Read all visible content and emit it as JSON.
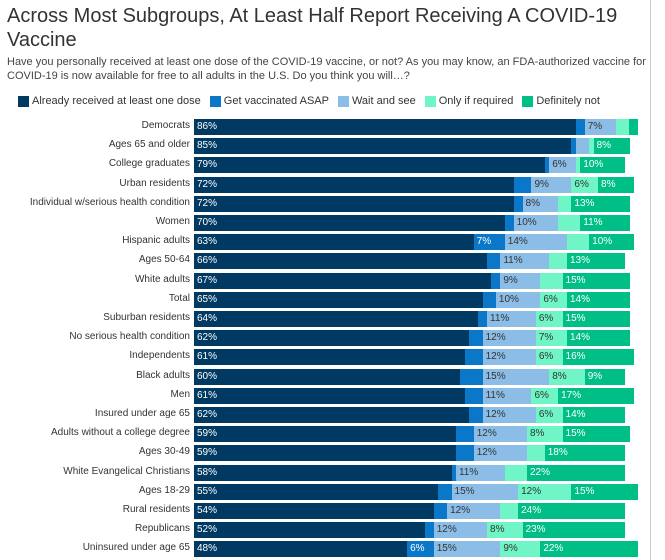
{
  "chart_data": {
    "type": "bar",
    "orientation": "horizontal",
    "stacked": true,
    "title": "Across Most Subgroups, At Least Half Report Receiving A COVID-19 Vaccine",
    "subtitle": "Have you personally received at least one dose of the COVID-19 vaccine, or not? As you may know, an FDA-authorized vaccine for COVID-19 is now available for free to all adults in the U.S. Do you think you will…?",
    "legend_position": "top",
    "grid": false,
    "xlim": [
      0,
      100
    ],
    "categories": [
      "Democrats",
      "Ages 65 and older",
      "College graduates",
      "Urban residents",
      "Individual w/serious health condition",
      "Women",
      "Hispanic adults",
      "Ages 50-64",
      "White adults",
      "Total",
      "Suburban residents",
      "No serious health condition",
      "Independents",
      "Black adults",
      "Men",
      "Insured under age 65",
      "Adults without a college degree",
      "Ages 30-49",
      "White Evangelical Christians",
      "Ages 18-29",
      "Rural residents",
      "Republicans",
      "Uninsured under age 65"
    ],
    "series": [
      {
        "name": "Already received at least one dose",
        "color": "#003a63",
        "label_color": "#ffffff",
        "values": [
          86,
          85,
          79,
          72,
          72,
          70,
          63,
          66,
          67,
          65,
          64,
          62,
          61,
          60,
          61,
          62,
          59,
          59,
          58,
          55,
          54,
          52,
          48
        ]
      },
      {
        "name": "Get vaccinated ASAP",
        "color": "#0a77c9",
        "label_color": "#ffffff",
        "values": [
          2,
          1,
          1,
          4,
          2,
          2,
          7,
          3,
          2,
          3,
          2,
          3,
          4,
          5,
          4,
          3,
          4,
          4,
          1,
          3,
          3,
          2,
          6
        ]
      },
      {
        "name": "Wait and see",
        "color": "#8bbde6",
        "label_color": "#333333",
        "values": [
          7,
          3,
          6,
          9,
          8,
          10,
          14,
          11,
          9,
          10,
          11,
          12,
          12,
          15,
          11,
          12,
          12,
          12,
          11,
          15,
          12,
          12,
          15
        ]
      },
      {
        "name": "Only if required",
        "color": "#6ff5c6",
        "label_color": "#333333",
        "values": [
          3,
          1,
          1,
          6,
          3,
          5,
          5,
          4,
          5,
          6,
          6,
          7,
          6,
          8,
          6,
          6,
          8,
          4,
          5,
          12,
          4,
          8,
          9
        ]
      },
      {
        "name": "Definitely not",
        "color": "#00bf86",
        "label_color": "#ffffff",
        "values": [
          2,
          8,
          10,
          8,
          13,
          11,
          10,
          13,
          15,
          14,
          15,
          14,
          16,
          9,
          17,
          14,
          15,
          18,
          22,
          15,
          24,
          23,
          22
        ]
      }
    ],
    "label_threshold": 6
  }
}
